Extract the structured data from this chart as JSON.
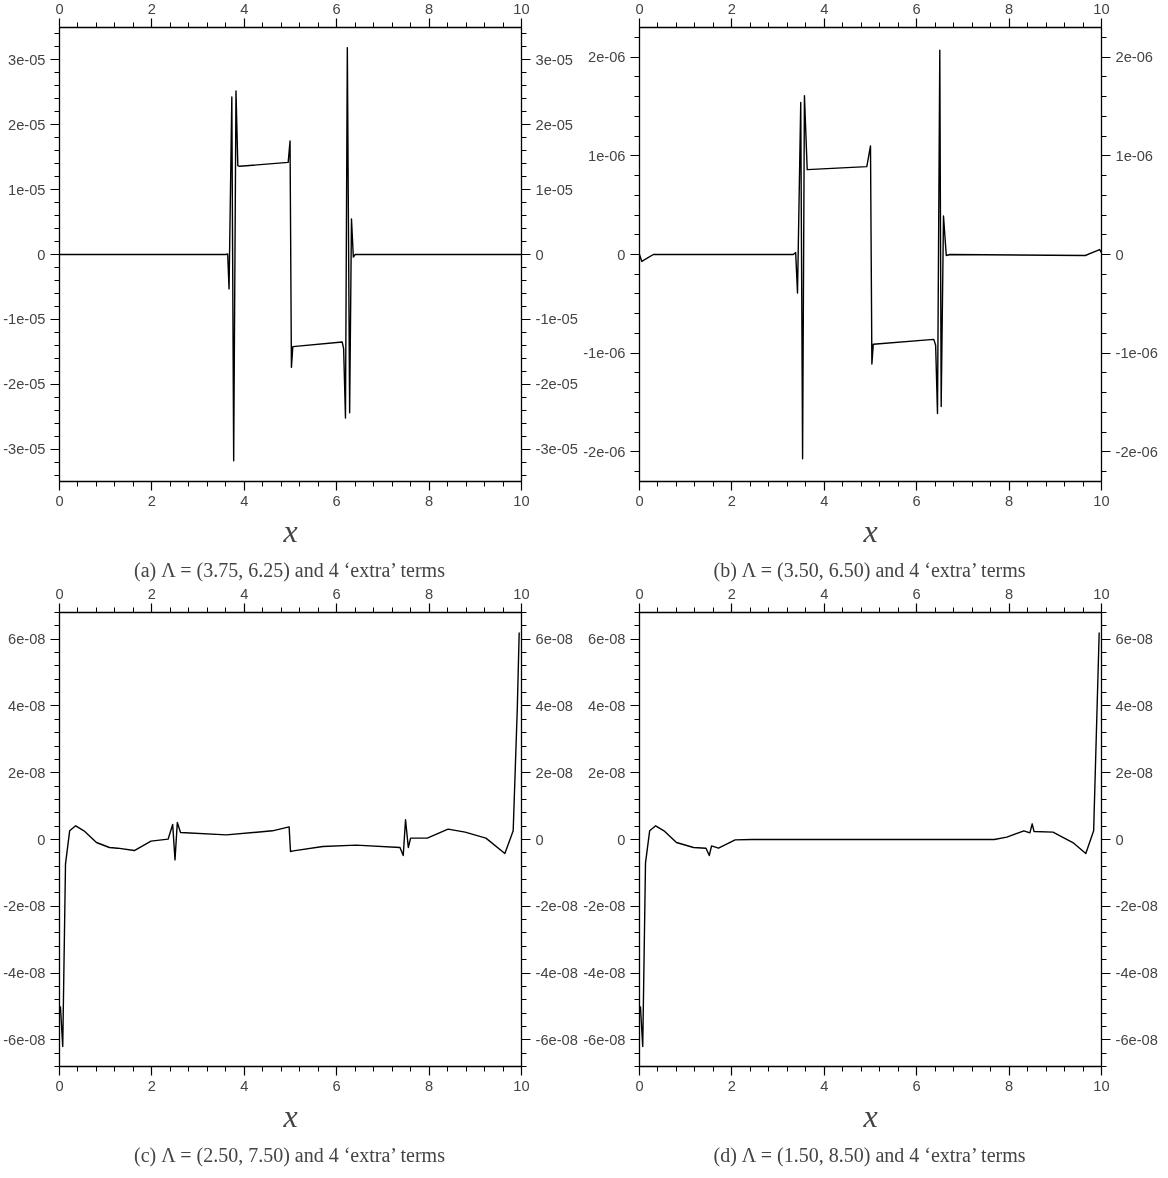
{
  "chart_data": [
    {
      "type": "line",
      "title": "(a) Λ = (3.75, 6.25) and 4 ‘extra’ terms",
      "xlabel": "x",
      "xlim": [
        0,
        10
      ],
      "xticks": [
        0,
        2,
        4,
        6,
        8,
        10
      ],
      "x2lim": [
        0,
        10
      ],
      "x2ticks": [
        0,
        2,
        4,
        6,
        8,
        10
      ],
      "ylim": [
        -3.5e-05,
        3.5e-05
      ],
      "yticks": [
        {
          "value": -3e-05,
          "label": "-3e-05"
        },
        {
          "value": -2e-05,
          "label": "-2e-05"
        },
        {
          "value": -1e-05,
          "label": "-1e-05"
        },
        0,
        {
          "value": 1e-05,
          "label": "1e-05"
        },
        {
          "value": 2e-05,
          "label": "2e-05"
        },
        {
          "value": 3e-05,
          "label": "3e-05"
        }
      ],
      "y2lim": [
        -3.5e-05,
        3.5e-05
      ],
      "y2ticks": [
        {
          "value": -3e-05,
          "label": "-3e-05"
        },
        {
          "value": -2e-05,
          "label": "-2e-05"
        },
        {
          "value": -1e-05,
          "label": "-1e-05"
        },
        0,
        {
          "value": 1e-05,
          "label": "1e-05"
        },
        {
          "value": 2e-05,
          "label": "2e-05"
        },
        {
          "value": 3e-05,
          "label": "3e-05"
        }
      ],
      "series": [
        {
          "color": "#000000",
          "x": [
            0,
            3.6,
            3.64,
            3.67,
            3.73,
            3.77,
            3.82,
            3.86,
            3.9,
            4.95,
            4.99,
            5.02,
            5.05,
            6.12,
            6.15,
            6.19,
            6.23,
            6.28,
            6.32,
            6.36,
            6.4,
            10
          ],
          "values": [
            0,
            0,
            1e-07,
            -5.3e-06,
            2.43e-05,
            -3.18e-05,
            2.52e-05,
            1.37e-05,
            1.36e-05,
            1.42e-05,
            1.75e-05,
            -1.74e-05,
            -1.42e-05,
            -1.35e-05,
            -1.45e-05,
            -2.52e-05,
            3.19e-05,
            -2.44e-05,
            5.5e-06,
            -4e-07,
            0,
            0
          ]
        }
      ]
    },
    {
      "type": "line",
      "title": "(b) Λ = (3.50, 6.50) and 4 ‘extra’ terms",
      "xlabel": "x",
      "xlim": [
        0,
        10
      ],
      "xticks": [
        0,
        2,
        4,
        6,
        8,
        10
      ],
      "x2lim": [
        0,
        10
      ],
      "x2ticks": [
        0,
        2,
        4,
        6,
        8,
        10
      ],
      "ylim": [
        -2.3e-06,
        2.3e-06
      ],
      "yticks": [
        {
          "value": -2e-06,
          "label": "-2e-06"
        },
        {
          "value": -1e-06,
          "label": "-1e-06"
        },
        0,
        {
          "value": 1e-06,
          "label": "1e-06"
        },
        {
          "value": 2e-06,
          "label": "2e-06"
        }
      ],
      "y2lim": [
        -2.3e-06,
        2.3e-06
      ],
      "y2ticks": [
        {
          "value": -2e-06,
          "label": "-2e-06"
        },
        {
          "value": -1e-06,
          "label": "-1e-06"
        },
        0,
        {
          "value": 1e-06,
          "label": "1e-06"
        },
        {
          "value": 2e-06,
          "label": "2e-06"
        }
      ],
      "series": [
        {
          "color": "#000000",
          "x": [
            0,
            0.05,
            0.3,
            3.33,
            3.38,
            3.42,
            3.49,
            3.53,
            3.57,
            3.63,
            4.92,
            5.0,
            5.03,
            5.06,
            6.37,
            6.41,
            6.45,
            6.5,
            6.53,
            6.58,
            6.64,
            6.72,
            9.65,
            9.96,
            10
          ],
          "values": [
            0,
            -7e-08,
            0,
            0,
            2e-08,
            -3.9e-07,
            1.54e-06,
            -2.07e-06,
            1.61e-06,
            8.6e-07,
            8.9e-07,
            1.1e-06,
            -1.11e-06,
            -9.1e-07,
            -8.6e-07,
            -9.2e-07,
            -1.61e-06,
            2.07e-06,
            -1.54e-06,
            3.9e-07,
            -1e-08,
            0,
            -1e-08,
            5e-08,
            2e-08
          ]
        }
      ]
    },
    {
      "type": "line",
      "title": "(c) Λ = (2.50, 7.50) and 4 ‘extra’ terms",
      "xlabel": "x",
      "xlim": [
        0,
        10
      ],
      "xticks": [
        0,
        2,
        4,
        6,
        8,
        10
      ],
      "x2lim": [
        0,
        10
      ],
      "x2ticks": [
        0,
        2,
        4,
        6,
        8,
        10
      ],
      "ylim": [
        -6.8e-08,
        6.8e-08
      ],
      "yticks": [
        {
          "value": -6e-08,
          "label": "-6e-08"
        },
        {
          "value": -4e-08,
          "label": "-4e-08"
        },
        {
          "value": -2e-08,
          "label": "-2e-08"
        },
        0,
        {
          "value": 2e-08,
          "label": "2e-08"
        },
        {
          "value": 4e-08,
          "label": "4e-08"
        },
        {
          "value": 6e-08,
          "label": "6e-08"
        }
      ],
      "y2lim": [
        -6.8e-08,
        6.8e-08
      ],
      "y2ticks": [
        {
          "value": -6e-08,
          "label": "-6e-08"
        },
        {
          "value": -4e-08,
          "label": "-4e-08"
        },
        {
          "value": -2e-08,
          "label": "-2e-08"
        },
        0,
        {
          "value": 2e-08,
          "label": "2e-08"
        },
        {
          "value": 4e-08,
          "label": "4e-08"
        },
        {
          "value": 6e-08,
          "label": "6e-08"
        }
      ],
      "series": [
        {
          "color": "#000000",
          "x": [
            0.02,
            0.07,
            0.13,
            0.22,
            0.35,
            0.53,
            0.8,
            1.08,
            1.26,
            1.62,
            1.98,
            2.35,
            2.45,
            2.5,
            2.55,
            2.62,
            3.61,
            4.61,
            4.97,
            5.0,
            5.06,
            5.7,
            6.42,
            7.37,
            7.44,
            7.49,
            7.55,
            7.6,
            7.96,
            8.41,
            8.78,
            9.23,
            9.64,
            9.82,
            9.91,
            9.95
          ],
          "values": [
            -5e-08,
            -6.2e-08,
            -7.3e-09,
            2.6e-09,
            4.1e-09,
            2.6e-09,
            -9e-10,
            -2.4e-09,
            -2.6e-09,
            -3.3e-09,
            -5e-10,
            1e-10,
            4.5e-09,
            -6.1e-09,
            5.1e-09,
            2.1e-09,
            1.4e-09,
            2.6e-09,
            3.8e-09,
            -3.6e-09,
            -3.4e-09,
            -2.1e-09,
            -1.7e-09,
            -2.4e-09,
            -4.8e-09,
            5.9e-09,
            -2.4e-09,
            4e-10,
            4e-10,
            3.1e-09,
            2.2e-09,
            4e-10,
            -4.2e-09,
            2.6e-09,
            3.97e-08,
            6.2e-08
          ]
        }
      ]
    },
    {
      "type": "line",
      "title": "(d) Λ = (1.50, 8.50) and 4 ‘extra’ terms",
      "xlabel": "x",
      "xlim": [
        0,
        10
      ],
      "xticks": [
        0,
        2,
        4,
        6,
        8,
        10
      ],
      "x2lim": [
        0,
        10
      ],
      "x2ticks": [
        0,
        2,
        4,
        6,
        8,
        10
      ],
      "ylim": [
        -6.8e-08,
        6.8e-08
      ],
      "yticks": [
        {
          "value": -6e-08,
          "label": "-6e-08"
        },
        {
          "value": -4e-08,
          "label": "-4e-08"
        },
        {
          "value": -2e-08,
          "label": "-2e-08"
        },
        0,
        {
          "value": 2e-08,
          "label": "2e-08"
        },
        {
          "value": 4e-08,
          "label": "4e-08"
        },
        {
          "value": 6e-08,
          "label": "6e-08"
        }
      ],
      "y2lim": [
        -6.8e-08,
        6.8e-08
      ],
      "y2ticks": [
        {
          "value": -6e-08,
          "label": "-6e-08"
        },
        {
          "value": -4e-08,
          "label": "-4e-08"
        },
        {
          "value": -2e-08,
          "label": "-2e-08"
        },
        0,
        {
          "value": 2e-08,
          "label": "2e-08"
        },
        {
          "value": 4e-08,
          "label": "4e-08"
        },
        {
          "value": 6e-08,
          "label": "6e-08"
        }
      ],
      "series": [
        {
          "color": "#000000",
          "x": [
            0.02,
            0.07,
            0.13,
            0.22,
            0.35,
            0.53,
            0.8,
            1.17,
            1.44,
            1.51,
            1.56,
            1.71,
            2.07,
            2.43,
            7.68,
            7.95,
            8.32,
            8.45,
            8.5,
            8.54,
            8.95,
            9.4,
            9.66,
            9.83,
            9.9,
            9.95
          ],
          "values": [
            -5e-08,
            -6.2e-08,
            -7e-09,
            2.6e-09,
            4.1e-09,
            2.6e-09,
            -9e-10,
            -2.4e-09,
            -2.6e-09,
            -4.8e-09,
            -1.9e-09,
            -2.6e-09,
            -1e-10,
            0,
            0,
            7e-10,
            2.6e-09,
            2e-09,
            4.7e-09,
            2.4e-09,
            2.2e-09,
            -1.1e-09,
            -4.2e-09,
            2.6e-09,
            3.73e-08,
            6.2e-08
          ]
        }
      ]
    }
  ]
}
